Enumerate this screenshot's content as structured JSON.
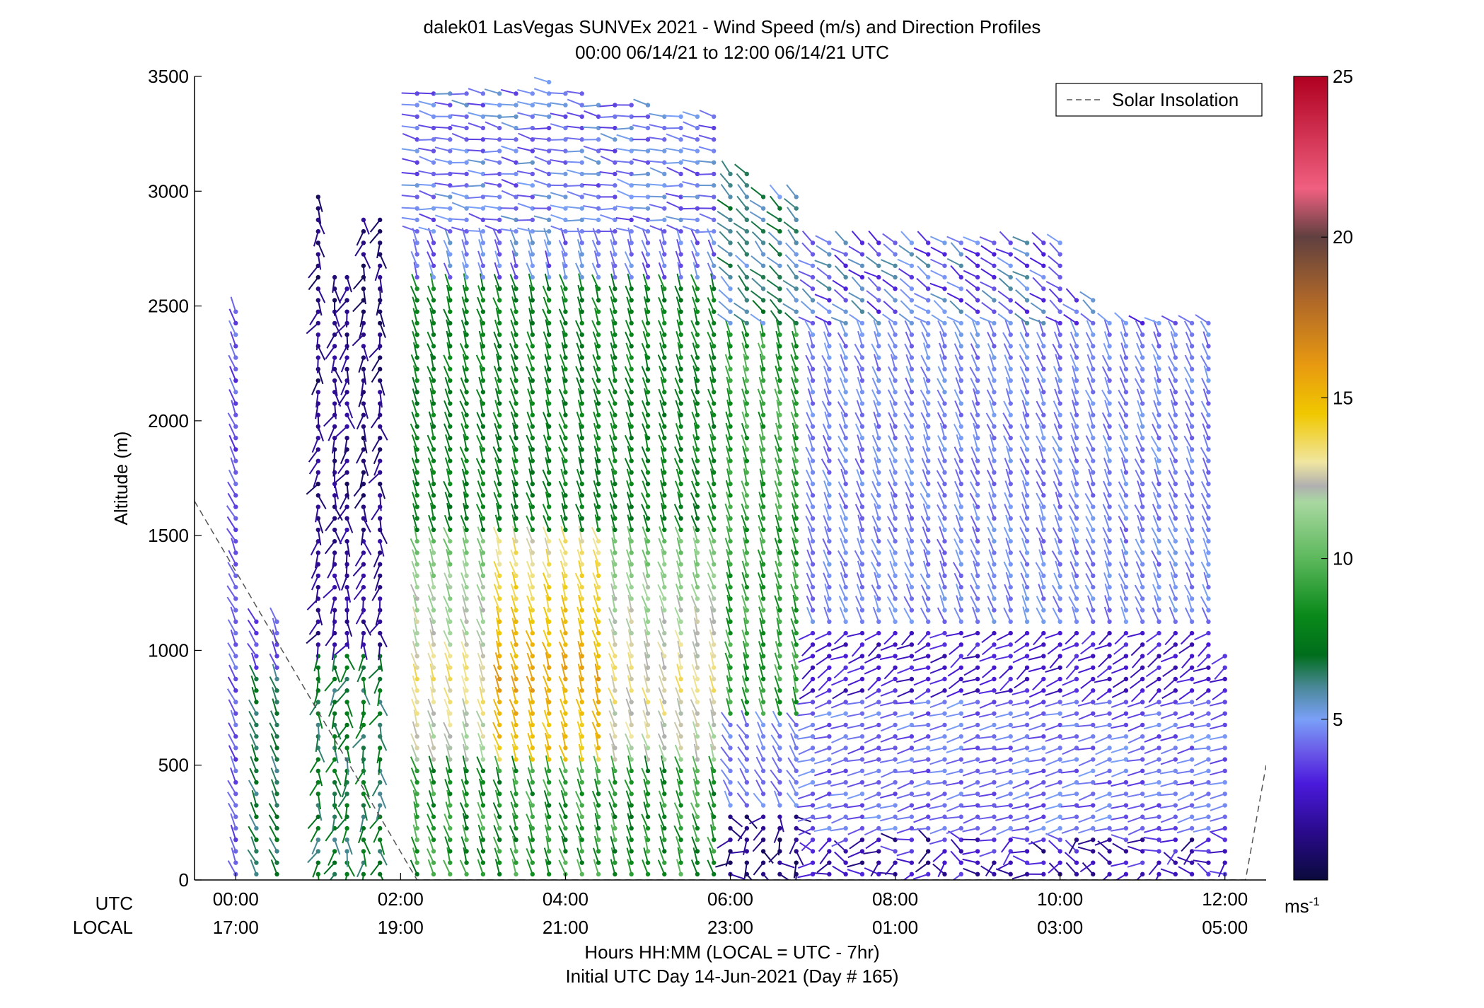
{
  "chart_data": {
    "type": "wind_barb_profile",
    "title": "dalek01 LasVegas SUNVEx 2021 - Wind Speed (m/s) and Direction Profiles",
    "subtitle": "00:00 06/14/21 to 12:00 06/14/21  UTC",
    "ylabel": "Altitude (m)",
    "xlabel": "Hours HH:MM  (LOCAL = UTC - 7hr)",
    "xlabel2": "Initial UTC Day 14-Jun-2021 (Day # 165)",
    "xlim_hours_utc": [
      -0.5,
      12.5
    ],
    "ylim": [
      0,
      3500
    ],
    "grid": false,
    "legend": {
      "position": "top-right",
      "entries": [
        {
          "label": "Solar Insolation",
          "style": "dashed",
          "color": "#555555"
        }
      ]
    },
    "row_labels": {
      "utc": "UTC",
      "local": "LOCAL"
    },
    "x_ticks_hours": [
      0,
      2,
      4,
      6,
      8,
      10,
      12
    ],
    "x_tick_labels_utc": [
      "00:00",
      "02:00",
      "04:00",
      "06:00",
      "08:00",
      "10:00",
      "12:00"
    ],
    "x_tick_labels_local": [
      "17:00",
      "19:00",
      "21:00",
      "23:00",
      "01:00",
      "03:00",
      "05:00"
    ],
    "y_ticks": [
      0,
      500,
      1000,
      1500,
      2000,
      2500,
      3000,
      3500
    ],
    "y_tick_labels": [
      "0",
      "500",
      "1000",
      "1500",
      "2000",
      "2500",
      "3000",
      "3500"
    ],
    "colorbar": {
      "ticks": [
        5,
        10,
        15,
        20,
        25
      ],
      "tick_labels": [
        "5",
        "10",
        "15",
        "20",
        "25"
      ],
      "range": [
        0,
        25
      ],
      "unit_base": "ms",
      "unit_exp": "-1",
      "stops": [
        [
          0.0,
          "#0a0a3c"
        ],
        [
          0.06,
          "#2a0a8c"
        ],
        [
          0.12,
          "#4a1adc"
        ],
        [
          0.16,
          "#6a5ae8"
        ],
        [
          0.2,
          "#7aa0f8"
        ],
        [
          0.24,
          "#4a8898"
        ],
        [
          0.28,
          "#006e1c"
        ],
        [
          0.33,
          "#0a8a1a"
        ],
        [
          0.4,
          "#5cb85c"
        ],
        [
          0.47,
          "#a8d8a0"
        ],
        [
          0.49,
          "#b0b0b0"
        ],
        [
          0.52,
          "#f0e6a0"
        ],
        [
          0.58,
          "#f0c800"
        ],
        [
          0.64,
          "#e89a10"
        ],
        [
          0.72,
          "#b06828"
        ],
        [
          0.8,
          "#604040"
        ],
        [
          0.86,
          "#f06080"
        ],
        [
          1.0,
          "#b00020"
        ]
      ]
    },
    "solar_insolation_line": {
      "points": [
        [
          -0.5,
          1650
        ],
        [
          2.2,
          0
        ],
        [
          12.25,
          0
        ],
        [
          12.5,
          500
        ]
      ]
    },
    "profiles": [
      {
        "t": 0.0,
        "top": 2520,
        "regime": "early"
      },
      {
        "t": 0.25,
        "top": 1150,
        "regime": "early"
      },
      {
        "t": 0.5,
        "top": 1150,
        "regime": "early"
      },
      {
        "t": 1.0,
        "top": 3000,
        "regime": "calm"
      },
      {
        "t": 1.2,
        "top": 2650,
        "regime": "calm"
      },
      {
        "t": 1.35,
        "top": 2650,
        "regime": "calm"
      },
      {
        "t": 1.55,
        "top": 2900,
        "regime": "calm"
      },
      {
        "t": 1.75,
        "top": 2900,
        "regime": "calm"
      },
      {
        "t": 2.2,
        "top": 3470,
        "regime": "jet"
      },
      {
        "t": 2.4,
        "top": 3470,
        "regime": "jet"
      },
      {
        "t": 2.6,
        "top": 3470,
        "regime": "jet"
      },
      {
        "t": 2.8,
        "top": 3470,
        "regime": "jet"
      },
      {
        "t": 3.0,
        "top": 3470,
        "regime": "jet"
      },
      {
        "t": 3.2,
        "top": 3470,
        "regime": "jet"
      },
      {
        "t": 3.4,
        "top": 3470,
        "regime": "jet"
      },
      {
        "t": 3.6,
        "top": 3470,
        "regime": "jet"
      },
      {
        "t": 3.8,
        "top": 3480,
        "regime": "jet"
      },
      {
        "t": 4.0,
        "top": 3450,
        "regime": "jet"
      },
      {
        "t": 4.2,
        "top": 3430,
        "regime": "jet"
      },
      {
        "t": 4.4,
        "top": 3420,
        "regime": "jet"
      },
      {
        "t": 4.6,
        "top": 3420,
        "regime": "jet"
      },
      {
        "t": 4.8,
        "top": 3420,
        "regime": "jet"
      },
      {
        "t": 5.0,
        "top": 3410,
        "regime": "jet"
      },
      {
        "t": 5.2,
        "top": 3330,
        "regime": "jet"
      },
      {
        "t": 5.4,
        "top": 3330,
        "regime": "jet"
      },
      {
        "t": 5.6,
        "top": 3330,
        "regime": "jet"
      },
      {
        "t": 5.8,
        "top": 3330,
        "regime": "jet"
      },
      {
        "t": 6.0,
        "top": 3080,
        "regime": "evening"
      },
      {
        "t": 6.2,
        "top": 3080,
        "regime": "evening"
      },
      {
        "t": 6.4,
        "top": 2980,
        "regime": "evening"
      },
      {
        "t": 6.6,
        "top": 2980,
        "regime": "evening"
      },
      {
        "t": 6.8,
        "top": 2980,
        "regime": "evening"
      },
      {
        "t": 7.0,
        "top": 2780,
        "regime": "night"
      },
      {
        "t": 7.2,
        "top": 2780,
        "regime": "night"
      },
      {
        "t": 7.4,
        "top": 2780,
        "regime": "night"
      },
      {
        "t": 7.6,
        "top": 2780,
        "regime": "night"
      },
      {
        "t": 7.8,
        "top": 2780,
        "regime": "night"
      },
      {
        "t": 8.0,
        "top": 2780,
        "regime": "night"
      },
      {
        "t": 8.2,
        "top": 2780,
        "regime": "night"
      },
      {
        "t": 8.4,
        "top": 2780,
        "regime": "night"
      },
      {
        "t": 8.6,
        "top": 2780,
        "regime": "night"
      },
      {
        "t": 8.8,
        "top": 2780,
        "regime": "night"
      },
      {
        "t": 9.0,
        "top": 2780,
        "regime": "night"
      },
      {
        "t": 9.2,
        "top": 2780,
        "regime": "night"
      },
      {
        "t": 9.4,
        "top": 2780,
        "regime": "night"
      },
      {
        "t": 9.6,
        "top": 2780,
        "regime": "night"
      },
      {
        "t": 9.8,
        "top": 2780,
        "regime": "night"
      },
      {
        "t": 10.0,
        "top": 2780,
        "regime": "night"
      },
      {
        "t": 10.2,
        "top": 2550,
        "regime": "night"
      },
      {
        "t": 10.4,
        "top": 2550,
        "regime": "night"
      },
      {
        "t": 10.6,
        "top": 2450,
        "regime": "night"
      },
      {
        "t": 10.8,
        "top": 2450,
        "regime": "night"
      },
      {
        "t": 11.0,
        "top": 2450,
        "regime": "night"
      },
      {
        "t": 11.2,
        "top": 2450,
        "regime": "night"
      },
      {
        "t": 11.4,
        "top": 2450,
        "regime": "night"
      },
      {
        "t": 11.6,
        "top": 2450,
        "regime": "night"
      },
      {
        "t": 11.8,
        "top": 2450,
        "regime": "night"
      },
      {
        "t": 12.0,
        "top": 1020,
        "regime": "night"
      }
    ]
  }
}
